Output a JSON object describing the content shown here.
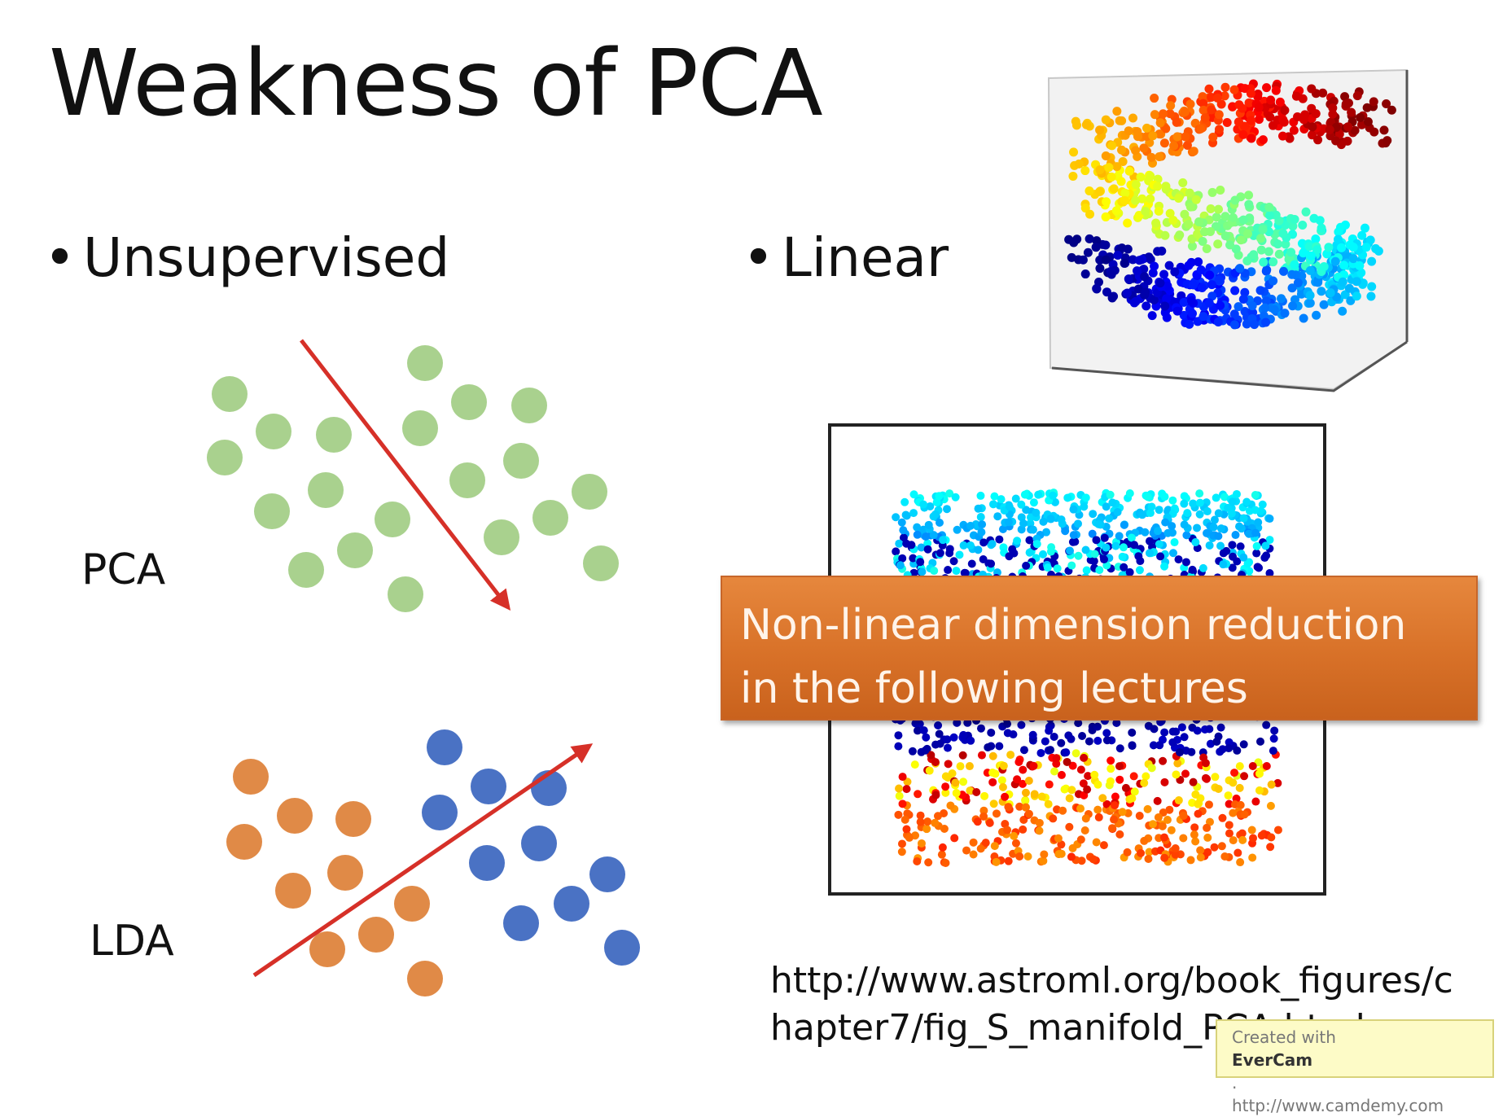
{
  "slide": {
    "title": "Weakness of PCA",
    "bullets": [
      "Unsupervised",
      "Linear"
    ],
    "diagram_labels": {
      "pca": "PCA",
      "lda": "LDA"
    },
    "callout": [
      "Non-linear dimension reduction",
      "in the following lectures"
    ],
    "url": [
      "http://www.astroml.org/book_figures/c",
      "hapter7/fig_S_manifold_PCA.html"
    ],
    "watermark": {
      "prefix": "Created with ",
      "brand": "EverCam",
      "suffix": ".",
      "url": "http://www.camdemy.com"
    }
  },
  "colors": {
    "green_dot": "#a9d18e",
    "orange_dot": "#e08a47",
    "blue_dot": "#4a72c4",
    "arrow": "#d63028",
    "callout": "#d87128"
  }
}
